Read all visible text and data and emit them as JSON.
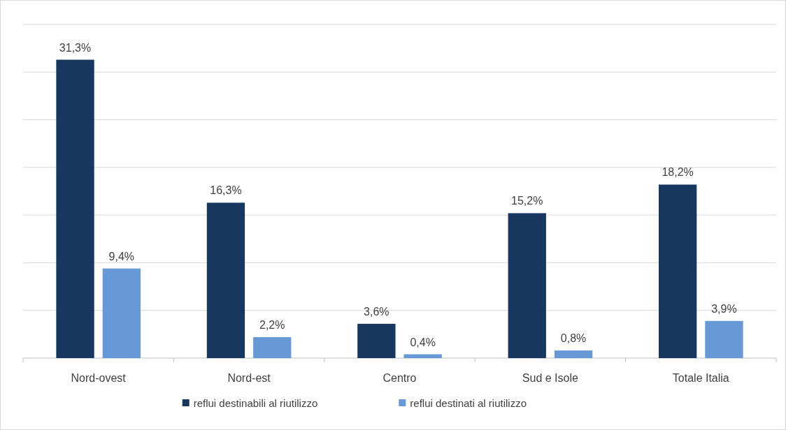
{
  "chart_data": {
    "type": "bar",
    "categories": [
      "Nord-ovest",
      "Nord-est",
      "Centro",
      "Sud e Isole",
      "Totale Italia"
    ],
    "series": [
      {
        "name": "reflui destinabili al riutilizzo",
        "color": "#17375e",
        "values": [
          31.3,
          16.3,
          3.6,
          15.2,
          18.2
        ],
        "value_labels": [
          "31,3%",
          "16,3%",
          "3,6%",
          "15,2%",
          "18,2%"
        ]
      },
      {
        "name": "reflui destinati al riutilizzo",
        "color": "#6699d6",
        "values": [
          9.4,
          2.2,
          0.4,
          0.8,
          3.9
        ],
        "value_labels": [
          "9,4%",
          "2,2%",
          "0,4%",
          "0,8%",
          "3,9%"
        ]
      }
    ],
    "ylim": [
      0,
      35
    ],
    "yticks": [
      {
        "value": 0,
        "label": null
      },
      {
        "value": 5,
        "label": null
      },
      {
        "value": 10,
        "label": null
      },
      {
        "value": 15,
        "label": null
      },
      {
        "value": 20,
        "label": null
      },
      {
        "value": 25,
        "label": null
      },
      {
        "value": 30,
        "label": null
      },
      {
        "value": 35,
        "label": null
      }
    ],
    "tick_labels": "x",
    "grid": "y",
    "legend": "bottom"
  }
}
